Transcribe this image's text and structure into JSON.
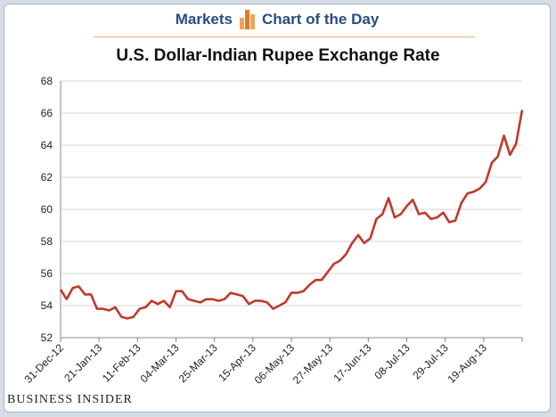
{
  "header": {
    "left_label": "Markets",
    "right_label": "Chart of the Day",
    "accent": "#e07b24",
    "text_color": "#2b4c7e"
  },
  "footer": {
    "brand": "BUSINESS INSIDER"
  },
  "chart_data": {
    "type": "line",
    "title": "U.S. Dollar-Indian Rupee Exchange Rate",
    "xlabel": "",
    "ylabel": "",
    "ylim": [
      52,
      68
    ],
    "y_ticks": [
      52,
      54,
      56,
      58,
      60,
      62,
      64,
      66,
      68
    ],
    "x_tick_labels": [
      "31-Dec-12",
      "21-Jan-13",
      "11-Feb-13",
      "04-Mar-13",
      "25-Mar-13",
      "15-Apr-13",
      "06-May-13",
      "27-May-13",
      "17-Jun-13",
      "08-Jul-13",
      "29-Jul-13",
      "19-Aug-13"
    ],
    "grid": "horizontal",
    "legend": "none",
    "line_color": "#c0392b",
    "series": [
      {
        "values": [
          55.0,
          54.4,
          55.1,
          55.2,
          54.7,
          54.7,
          53.8,
          53.8,
          53.7,
          53.9,
          53.3,
          53.2,
          53.3,
          53.8,
          53.9,
          54.3,
          54.1,
          54.3,
          53.9,
          54.9,
          54.9,
          54.4,
          54.3,
          54.2,
          54.4,
          54.4,
          54.3,
          54.4,
          54.8,
          54.7,
          54.6,
          54.1,
          54.3,
          54.3,
          54.2,
          53.8,
          54.0,
          54.2,
          54.8,
          54.8,
          54.9,
          55.3,
          55.6,
          55.6,
          56.1,
          56.6,
          56.8,
          57.2,
          57.9,
          58.4,
          57.9,
          58.2,
          59.4,
          59.7,
          60.7,
          59.5,
          59.7,
          60.2,
          60.6,
          59.7,
          59.8,
          59.4,
          59.5,
          59.8,
          59.2,
          59.3,
          60.4,
          61.0,
          61.1,
          61.3,
          61.7,
          62.9,
          63.3,
          64.6,
          63.4,
          64.1,
          66.2
        ]
      }
    ]
  }
}
